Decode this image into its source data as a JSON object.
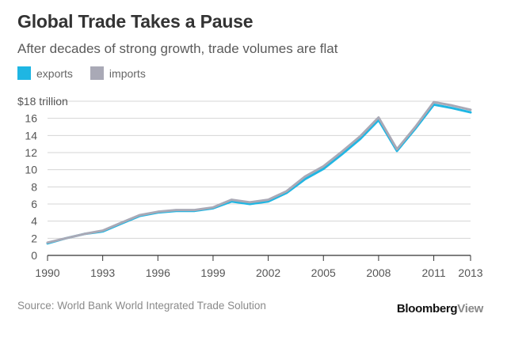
{
  "title": "Global Trade Takes a Pause",
  "subtitle": "After decades of strong growth, trade volumes are flat",
  "legend": {
    "exports_label": "exports",
    "imports_label": "imports"
  },
  "colors": {
    "exports": "#1fb6e3",
    "imports": "#a9a9b6",
    "grid": "#d4d4d4",
    "axis": "#333333"
  },
  "source": "Source: World Bank World Integrated Trade Solution",
  "brand": {
    "main": "Bloomberg",
    "accent": "View"
  },
  "chart_data": {
    "type": "line",
    "title": "Global Trade Takes a Pause",
    "subtitle": "After decades of strong growth, trade volumes are flat",
    "xlabel": "",
    "ylabel": "",
    "x": [
      1990,
      1991,
      1992,
      1993,
      1994,
      1995,
      1996,
      1997,
      1998,
      1999,
      2000,
      2001,
      2002,
      2003,
      2004,
      2005,
      2006,
      2007,
      2008,
      2009,
      2010,
      2011,
      2012,
      2013
    ],
    "series": [
      {
        "name": "exports",
        "values": [
          1.4,
          2.0,
          2.5,
          2.8,
          3.7,
          4.6,
          5.0,
          5.2,
          5.2,
          5.5,
          6.3,
          6.0,
          6.3,
          7.3,
          8.9,
          10.1,
          11.8,
          13.6,
          15.8,
          12.2,
          14.8,
          17.6,
          17.2,
          16.7
        ]
      },
      {
        "name": "imports",
        "values": [
          1.5,
          2.0,
          2.5,
          2.9,
          3.8,
          4.7,
          5.1,
          5.3,
          5.3,
          5.6,
          6.5,
          6.2,
          6.5,
          7.5,
          9.2,
          10.4,
          12.1,
          13.9,
          16.1,
          12.4,
          15.0,
          17.9,
          17.5,
          17.0
        ]
      }
    ],
    "ylim": [
      0,
      18
    ],
    "yticks": [
      0,
      2,
      4,
      6,
      8,
      10,
      12,
      14,
      16,
      18
    ],
    "ytick_labels": [
      "0",
      "2",
      "4",
      "6",
      "8",
      "10",
      "12",
      "14",
      "16",
      "$18 trillion"
    ],
    "xticks": [
      1990,
      1993,
      1996,
      1999,
      2002,
      2005,
      2008,
      2011,
      2013
    ],
    "xtick_labels": [
      "1990",
      "1993",
      "1996",
      "1999",
      "2002",
      "2005",
      "2008",
      "2011",
      "2013"
    ],
    "grid": true,
    "legend_position": "top-left"
  }
}
